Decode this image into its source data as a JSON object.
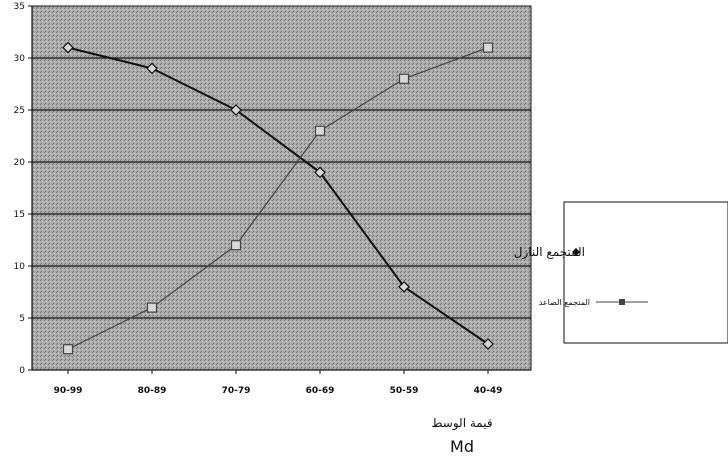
{
  "chart_data": {
    "type": "line",
    "categories": [
      "90-99",
      "80-89",
      "70-79",
      "60-69",
      "50-59",
      "40-49"
    ],
    "ylim": [
      0,
      35
    ],
    "yticks": [
      0,
      5,
      10,
      15,
      20,
      25,
      30,
      35
    ],
    "grid": true,
    "legend_position": "right",
    "xlabel": "قيمة الوسط",
    "xlabel_sub": "Md",
    "series": [
      {
        "name": "المتجمع النازل",
        "marker": "diamond",
        "color": "#111111",
        "values": [
          31,
          29,
          25,
          19,
          8,
          2.5
        ]
      },
      {
        "name": "المتجمع الصاعد",
        "marker": "square",
        "color": "#444444",
        "values": [
          2,
          6,
          12,
          23,
          28,
          31
        ]
      }
    ]
  },
  "colors": {
    "plot_fill": "#a6a6a6",
    "gridline": "#111111",
    "axis": "#111111"
  }
}
